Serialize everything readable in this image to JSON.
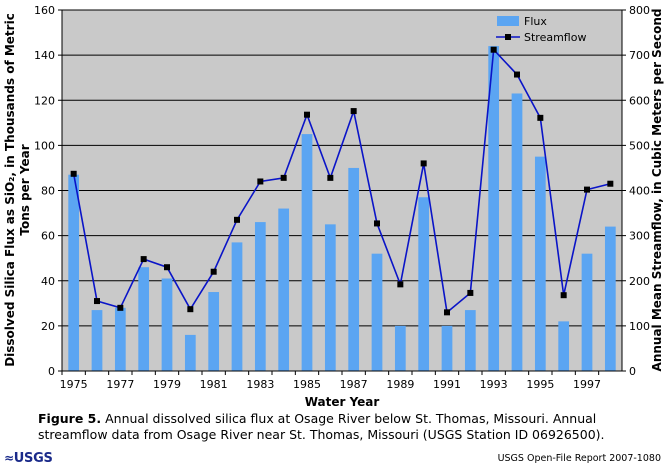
{
  "chart_data": {
    "type": "bar+line",
    "x_label": "Water Year",
    "y_left_label": "Dissolved Silica Flux as SiO₂, in Thousands of Metric Tons per Year",
    "y_right_label": "Annual Mean Streamflow, in Cubic Meters per Second",
    "y_left_range": [
      0,
      160
    ],
    "y_right_range": [
      0,
      800
    ],
    "y_left_ticks": [
      "0",
      "20",
      "40",
      "60",
      "80",
      "100",
      "120",
      "140",
      "160"
    ],
    "y_right_ticks": [
      "0",
      "100",
      "200",
      "300",
      "400",
      "500",
      "600",
      "700",
      "800"
    ],
    "years": [
      1975,
      1976,
      1977,
      1978,
      1979,
      1980,
      1981,
      1982,
      1983,
      1984,
      1985,
      1986,
      1987,
      1988,
      1989,
      1990,
      1991,
      1992,
      1993,
      1994,
      1995,
      1996,
      1997,
      1998
    ],
    "x_tick_labels": [
      "1975",
      "1977",
      "1979",
      "1981",
      "1983",
      "1985",
      "1987",
      "1989",
      "1991",
      "1993",
      "1995",
      "1997"
    ],
    "series": [
      {
        "name": "Flux",
        "kind": "bar",
        "axis": "left",
        "color": "#5ba5f2",
        "values": [
          87,
          27,
          28,
          46,
          41,
          16,
          35,
          57,
          66,
          72,
          105,
          65,
          90,
          52,
          20,
          77,
          20,
          27,
          144,
          123,
          95,
          22,
          52,
          64
        ]
      },
      {
        "name": "Streamflow",
        "kind": "line",
        "axis": "right",
        "color": "#0a14c8",
        "values": [
          437,
          155,
          140,
          248,
          230,
          137,
          220,
          335,
          420,
          428,
          568,
          428,
          576,
          327,
          192,
          460,
          130,
          173,
          712,
          657,
          561,
          168,
          402,
          415
        ]
      }
    ]
  },
  "caption": {
    "figure_label": "Figure 5.",
    "text": "Annual dissolved silica flux at Osage River below St. Thomas, Missouri. Annual streamflow data from Osage River near St. Thomas, Missouri (USGS Station ID 06926500)."
  },
  "footer": {
    "logo_text": "USGS",
    "report": "USGS Open-File Report 2007-1080"
  },
  "colors": {
    "plot_background": "#c9c9c9",
    "grid": "#000000"
  }
}
